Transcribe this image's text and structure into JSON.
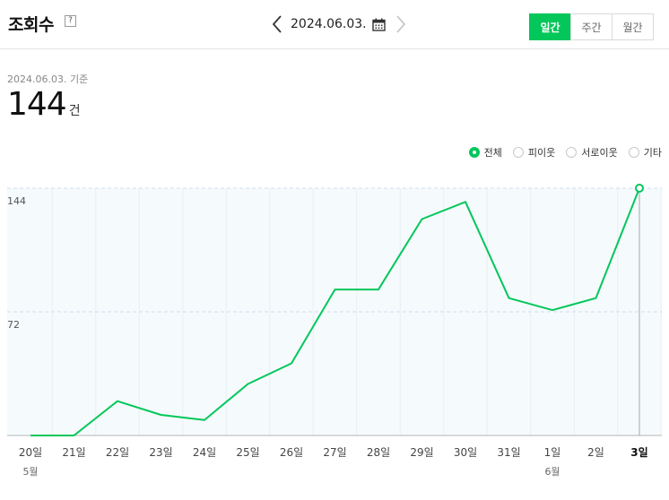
{
  "header": {
    "title": "조회수",
    "help_icon": "?",
    "date": "2024.06.03.",
    "tabs": [
      {
        "label": "일간",
        "active": true
      },
      {
        "label": "주간",
        "active": false
      },
      {
        "label": "월간",
        "active": false
      }
    ]
  },
  "summary": {
    "basis": "2024.06.03. 기준",
    "count": "144",
    "unit": "건"
  },
  "legend": [
    {
      "label": "전체",
      "selected": true
    },
    {
      "label": "피이웃",
      "selected": false
    },
    {
      "label": "서로이웃",
      "selected": false
    },
    {
      "label": "기타",
      "selected": false
    }
  ],
  "colors": {
    "accent": "#03c75a"
  },
  "chart_data": {
    "type": "line",
    "categories": [
      "20일",
      "21일",
      "22일",
      "23일",
      "24일",
      "25일",
      "26일",
      "27일",
      "28일",
      "29일",
      "30일",
      "31일",
      "1일",
      "2일",
      "3일"
    ],
    "month_labels": [
      {
        "index": 0,
        "label": "5월"
      },
      {
        "index": 12,
        "label": "6월"
      }
    ],
    "series": [
      {
        "values": [
          0,
          0,
          20,
          12,
          9,
          30,
          42,
          85,
          85,
          126,
          136,
          80,
          73,
          80,
          144
        ]
      }
    ],
    "yticks": [
      72,
      144
    ],
    "ylim": [
      0,
      144
    ],
    "highlight_index": 14
  }
}
